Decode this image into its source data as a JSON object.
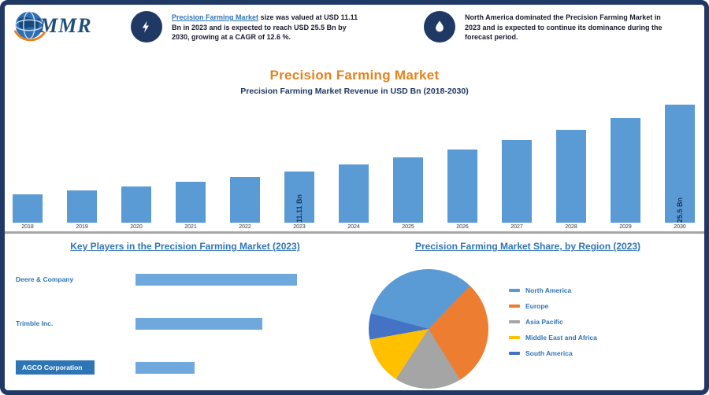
{
  "window": {
    "background": "#ffffff",
    "border_color": "#1F3864"
  },
  "logo": {
    "name": "MMR"
  },
  "header": {
    "highlights": [
      {
        "icon": "lightning-icon",
        "link_text": "Precision Farming Market",
        "text_rest": " size was valued at USD 11.11 Bn in 2023 and is expected to reach USD 25.5 Bn by 2030, growing at a CAGR of 12.6 %."
      },
      {
        "icon": "droplet-icon",
        "text": "North America dominated the Precision Farming Market in 2023 and is expected to continue its dominance during the forecast period."
      }
    ]
  },
  "title": "Precision Farming Market",
  "chart_data": [
    {
      "type": "bar",
      "title": "Precision Farming Market Revenue in USD Bn (2018-2030)",
      "categories": [
        "2018",
        "2019",
        "2020",
        "2021",
        "2022",
        "2023",
        "2024",
        "2025",
        "2026",
        "2027",
        "2028",
        "2029",
        "2030"
      ],
      "values": [
        6.14,
        6.92,
        7.79,
        8.77,
        9.87,
        11.11,
        12.51,
        14.09,
        15.86,
        17.86,
        20.11,
        22.64,
        25.5
      ],
      "unit": "USD Bn",
      "bar_color": "#5B9BD5",
      "ylim": [
        0,
        26
      ],
      "grid": false,
      "data_labels": {
        "2023": "11.11 Bn",
        "2030": "25.5 Bn"
      }
    },
    {
      "type": "bar",
      "orientation": "horizontal",
      "title": "Key Players in the Precision Farming Market (2023)",
      "categories": [
        "Deere & Company",
        "Trimble Inc.",
        "AGCO Corporation"
      ],
      "values": [
        79,
        62,
        29
      ],
      "xlim": [
        0,
        100
      ],
      "bar_color": "#6FA8DC",
      "highlighted_category": "AGCO Corporation"
    },
    {
      "type": "pie",
      "title": "Precision Farming Market Share, by Region (2023)",
      "labels": [
        "North America",
        "Europe",
        "Asia Pacific",
        "Middle East and Africa",
        "South America"
      ],
      "values": [
        33,
        29,
        18,
        13,
        7
      ],
      "colors": [
        "#5B9BD5",
        "#ED7D31",
        "#A5A5A5",
        "#FFC000",
        "#4472C4"
      ],
      "start_angle_deg": 285,
      "legend_position": "right"
    }
  ]
}
